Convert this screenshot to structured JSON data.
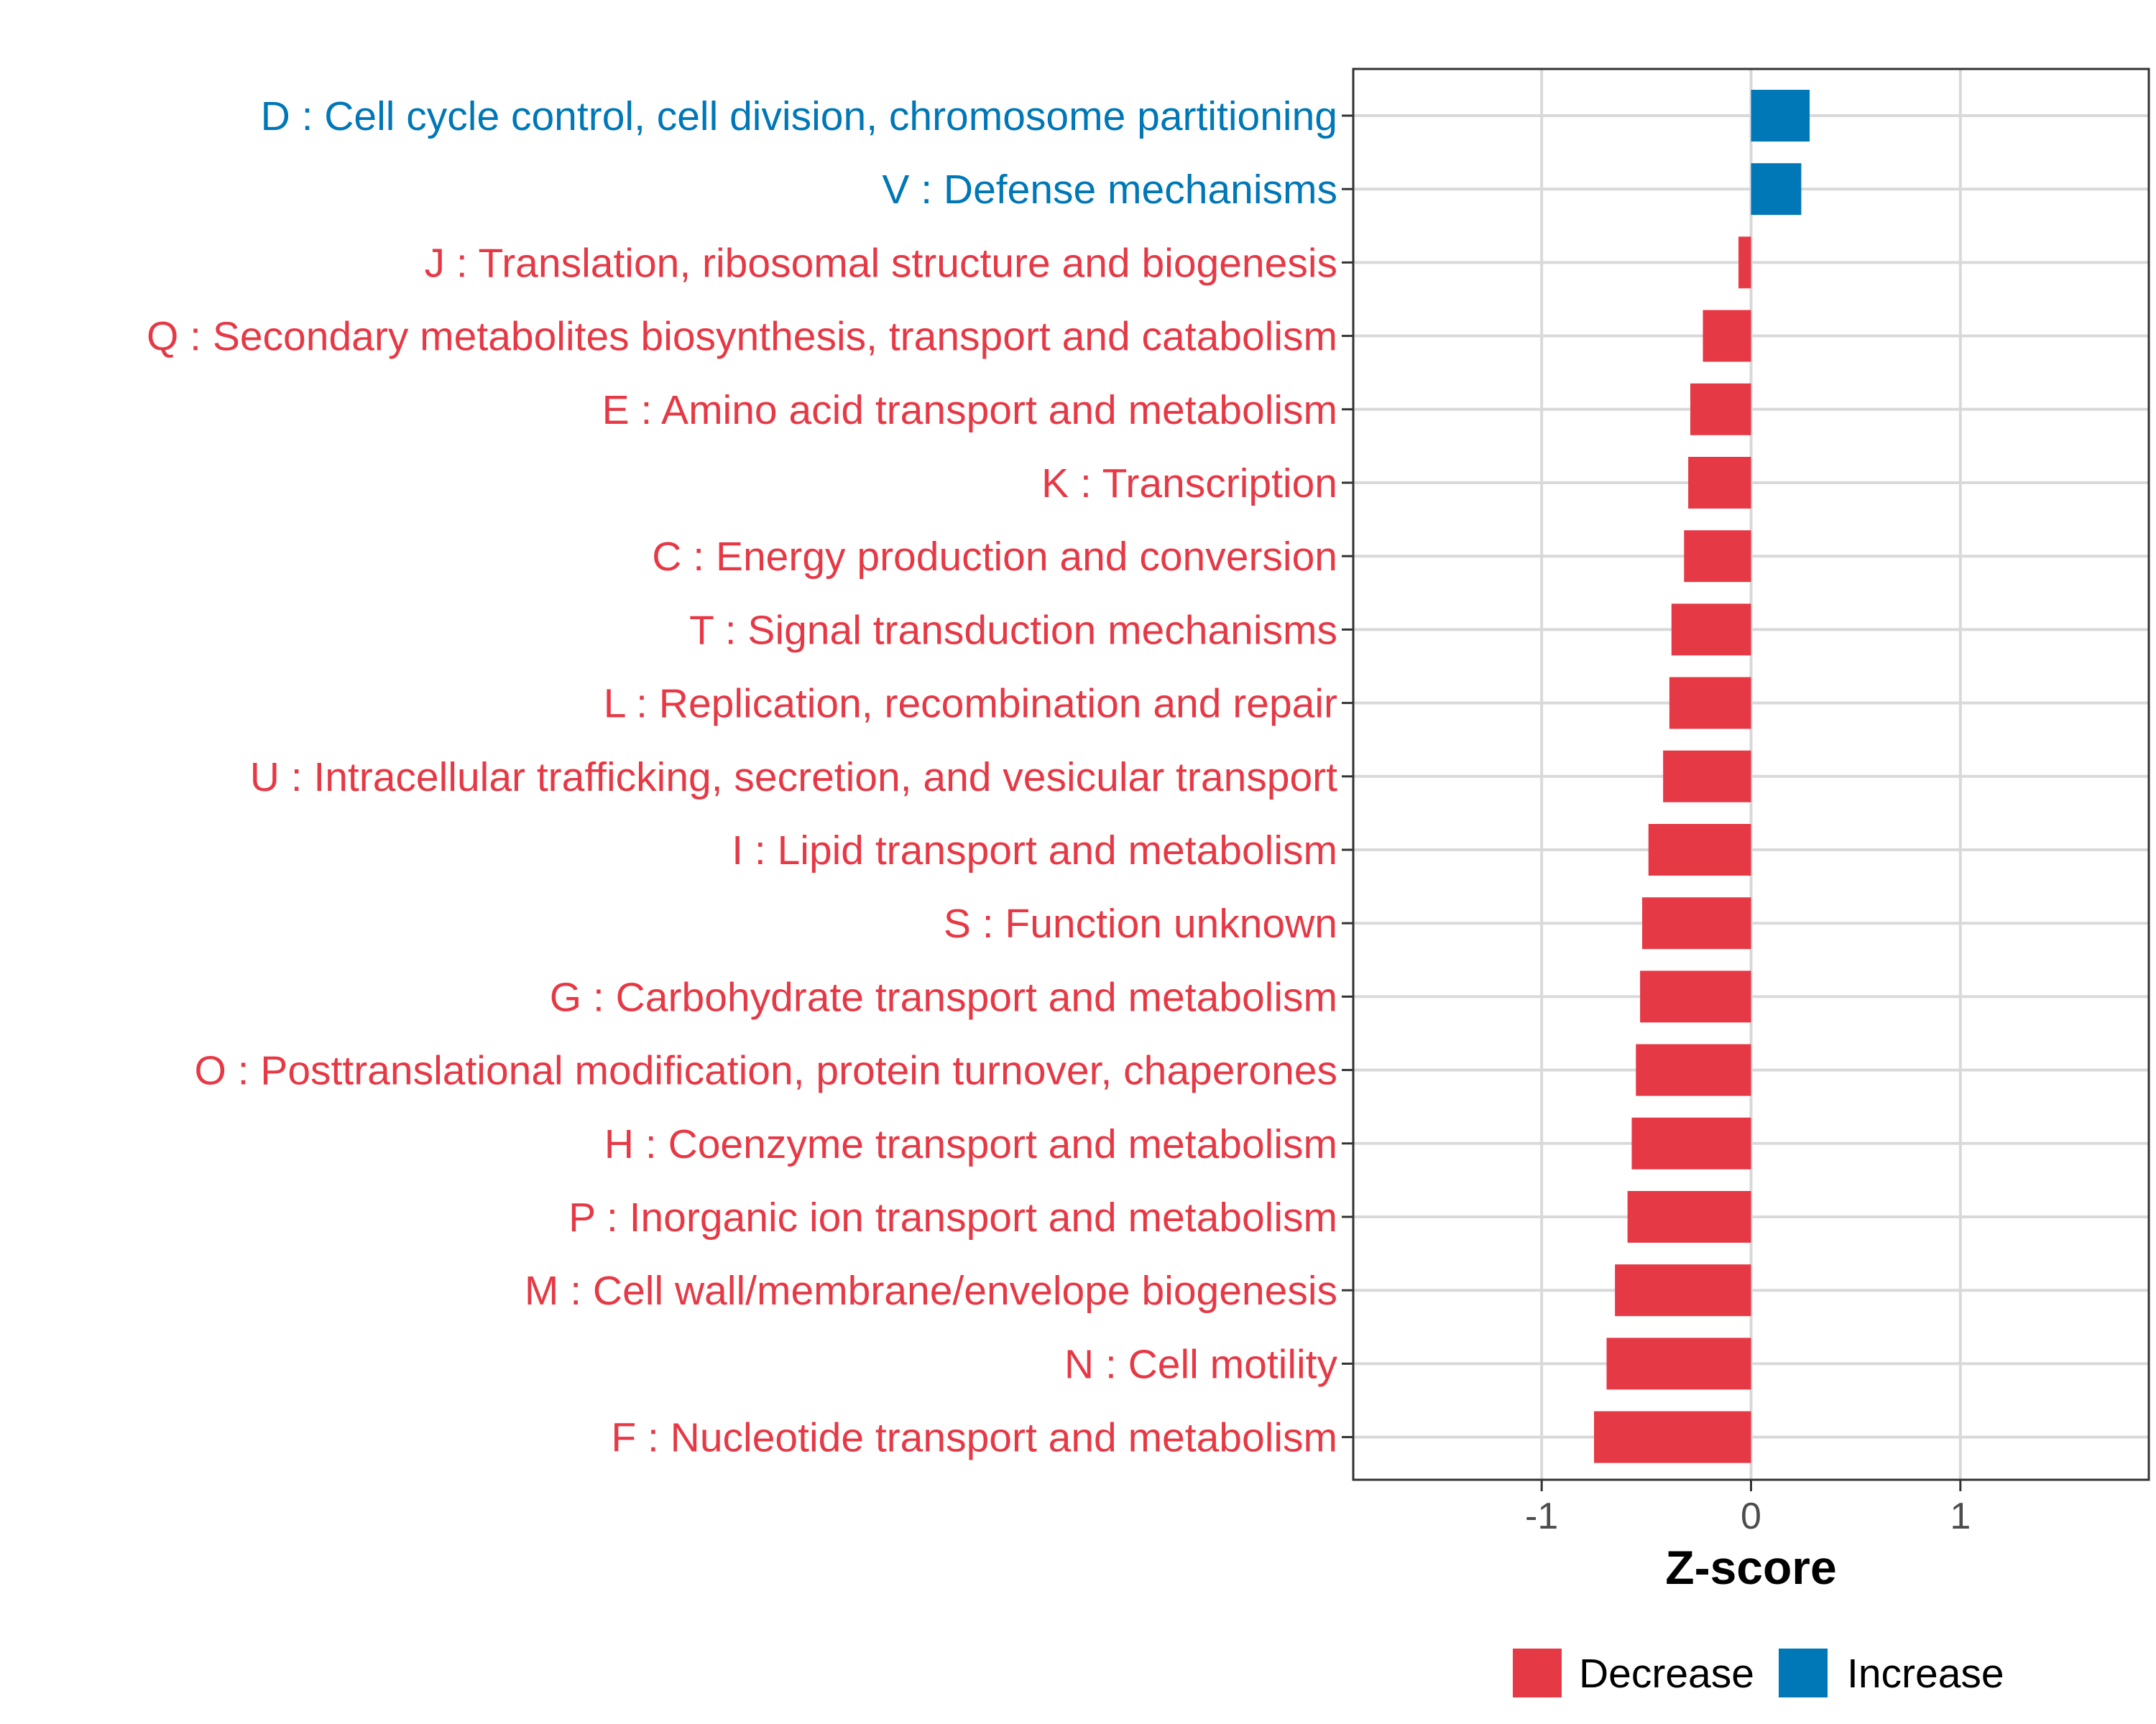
{
  "chart_data": {
    "type": "bar",
    "orientation": "horizontal",
    "xlabel": "Z-score",
    "xlim": [
      -1.9,
      1.9
    ],
    "xticks": [
      -1,
      0,
      1
    ],
    "xtick_labels": [
      "-1",
      "0",
      "1"
    ],
    "grid": true,
    "legend_position": "bottom",
    "categories": [
      "D : Cell cycle control, cell division, chromosome partitioning",
      "V : Defense mechanisms",
      "J : Translation, ribosomal structure and biogenesis",
      "Q : Secondary metabolites biosynthesis, transport and catabolism",
      "E : Amino acid transport and metabolism",
      "K : Transcription",
      "C : Energy production and conversion",
      "T : Signal transduction mechanisms",
      "L : Replication, recombination and repair",
      "U : Intracellular trafficking, secretion, and vesicular transport",
      "I : Lipid transport and metabolism",
      "S : Function unknown",
      "G : Carbohydrate transport and metabolism",
      "O : Posttranslational modification, protein turnover, chaperones",
      "H : Coenzyme transport and metabolism",
      "P : Inorganic ion transport and metabolism",
      "M : Cell wall/membrane/envelope biogenesis",
      "N : Cell motility",
      "F : Nucleotide transport and metabolism"
    ],
    "values": [
      0.28,
      0.24,
      -0.06,
      -0.23,
      -0.29,
      -0.3,
      -0.32,
      -0.38,
      -0.39,
      -0.42,
      -0.49,
      -0.52,
      -0.53,
      -0.55,
      -0.57,
      -0.59,
      -0.65,
      -0.69,
      -0.75
    ],
    "groups": [
      "Increase",
      "Increase",
      "Decrease",
      "Decrease",
      "Decrease",
      "Decrease",
      "Decrease",
      "Decrease",
      "Decrease",
      "Decrease",
      "Decrease",
      "Decrease",
      "Decrease",
      "Decrease",
      "Decrease",
      "Decrease",
      "Decrease",
      "Decrease",
      "Decrease"
    ],
    "legend": [
      {
        "name": "Decrease",
        "color": "#e63946"
      },
      {
        "name": "Increase",
        "color": "#0077b6"
      }
    ]
  }
}
